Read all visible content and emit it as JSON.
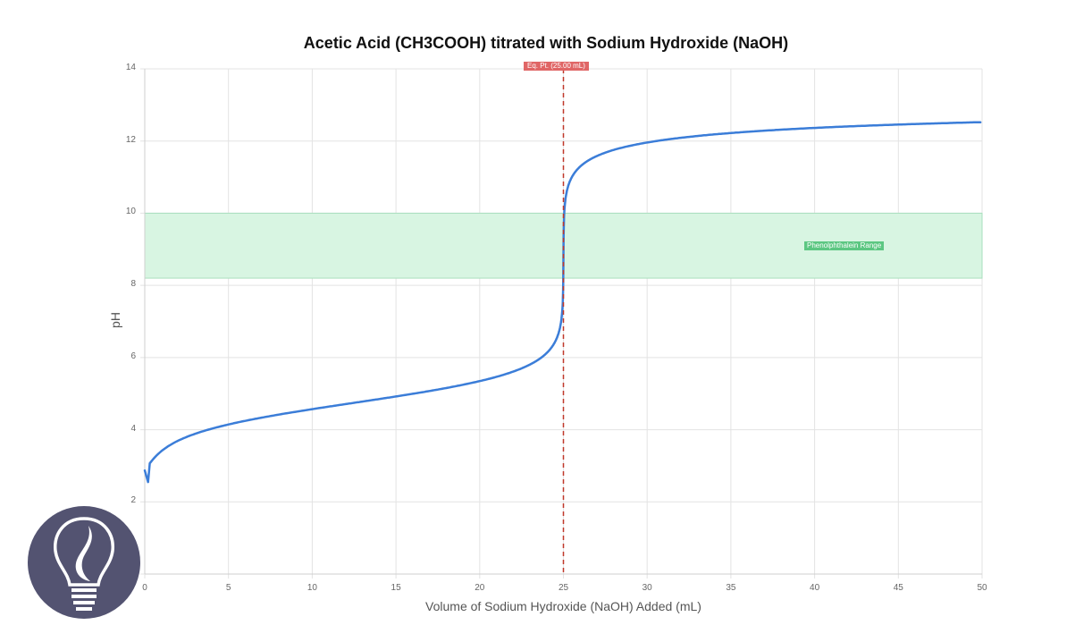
{
  "chart_data": {
    "type": "line",
    "title": "Acetic Acid (CH3COOH) titrated with Sodium Hydroxide (NaOH)",
    "xlabel": "Volume of Sodium Hydroxide (NaOH) Added (mL)",
    "ylabel": "pH",
    "xlim": [
      0,
      50
    ],
    "ylim": [
      0,
      14
    ],
    "x_ticks": [
      "0",
      "5",
      "10",
      "15",
      "20",
      "25",
      "30",
      "35",
      "40",
      "45",
      "50"
    ],
    "y_ticks": [
      "0",
      "2",
      "4",
      "6",
      "8",
      "10",
      "12",
      "14"
    ],
    "grid": true,
    "legend": "none",
    "series": [
      {
        "name": "pH",
        "color": "#3b7dd8",
        "x": [
          0,
          0.2,
          1,
          2.5,
          5,
          10,
          15,
          20,
          22.5,
          24,
          24.5,
          24.9,
          25,
          25.1,
          25.5,
          26,
          27.5,
          30,
          35,
          40,
          45,
          50
        ],
        "y": [
          2.87,
          2.55,
          3.35,
          3.8,
          4.15,
          4.58,
          4.93,
          5.34,
          5.7,
          6.1,
          6.45,
          7.15,
          8.72,
          10.3,
          11.0,
          11.29,
          11.68,
          11.96,
          12.22,
          12.36,
          12.45,
          12.52
        ]
      }
    ],
    "annotations": [
      {
        "type": "vertical-line",
        "x": 25,
        "label": "Eq. Pt. (25.00 mL)",
        "color": "#c0392b",
        "style": "dashed"
      },
      {
        "type": "band",
        "y_from": 8.2,
        "y_to": 10,
        "label": "Phenolphthalein Range",
        "color": "#5cc782"
      }
    ]
  },
  "logo": {
    "icon": "lightbulb-icon",
    "bg_color": "#535371"
  }
}
